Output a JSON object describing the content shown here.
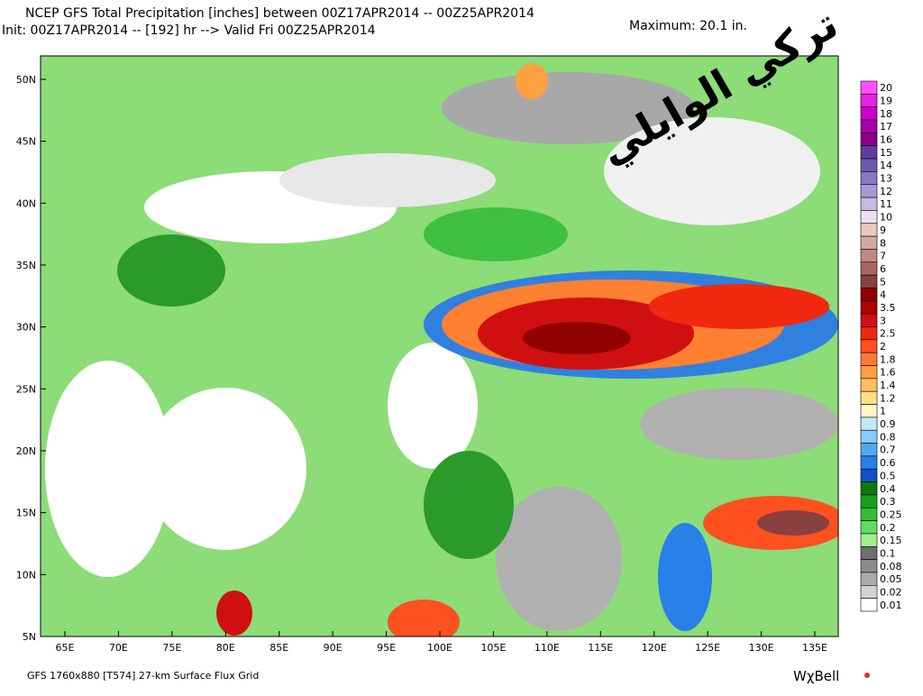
{
  "header": {
    "line1": "NCEP GFS Total Precipitation [inches] between 00Z17APR2014 -- 00Z25APR2014",
    "line2": "Init: 00Z17APR2014 -- [192] hr --> Valid Fri 00Z25APR2014",
    "maximum": "Maximum:  20.1 in."
  },
  "watermark": "تركي الوايلي",
  "map": {
    "lat_labels": [
      "50N",
      "45N",
      "40N",
      "35N",
      "30N",
      "25N",
      "20N",
      "15N",
      "10N",
      "5N"
    ],
    "lon_labels": [
      "65E",
      "70E",
      "75E",
      "80E",
      "85E",
      "90E",
      "95E",
      "100E",
      "105E",
      "110E",
      "115E",
      "120E",
      "125E",
      "130E",
      "135E"
    ]
  },
  "colorbar": {
    "levels": [
      {
        "label": "20",
        "color": "#ff50ff"
      },
      {
        "label": "19",
        "color": "#e820e8"
      },
      {
        "label": "18",
        "color": "#cc00cc"
      },
      {
        "label": "17",
        "color": "#a800a8"
      },
      {
        "label": "16",
        "color": "#880088"
      },
      {
        "label": "15",
        "color": "#603c9c"
      },
      {
        "label": "14",
        "color": "#7058b0"
      },
      {
        "label": "13",
        "color": "#8a78c4"
      },
      {
        "label": "12",
        "color": "#a898d4"
      },
      {
        "label": "11",
        "color": "#c8b8e4"
      },
      {
        "label": "10",
        "color": "#ece0f0"
      },
      {
        "label": "9",
        "color": "#e8c8c0"
      },
      {
        "label": "8",
        "color": "#d4a8a0"
      },
      {
        "label": "7",
        "color": "#c08880"
      },
      {
        "label": "6",
        "color": "#a86860"
      },
      {
        "label": "5",
        "color": "#884040"
      },
      {
        "label": "4",
        "color": "#900000"
      },
      {
        "label": "3.5",
        "color": "#b00000"
      },
      {
        "label": "3",
        "color": "#d01010"
      },
      {
        "label": "2.5",
        "color": "#f02810"
      },
      {
        "label": "2",
        "color": "#ff5020"
      },
      {
        "label": "1.8",
        "color": "#ff7830"
      },
      {
        "label": "1.6",
        "color": "#ffa040"
      },
      {
        "label": "1.4",
        "color": "#ffc060"
      },
      {
        "label": "1.2",
        "color": "#ffe088"
      },
      {
        "label": "1",
        "color": "#fff8c8"
      },
      {
        "label": "0.9",
        "color": "#c0e8ff"
      },
      {
        "label": "0.8",
        "color": "#88ccf8"
      },
      {
        "label": "0.7",
        "color": "#50a8f0"
      },
      {
        "label": "0.6",
        "color": "#2880e8"
      },
      {
        "label": "0.5",
        "color": "#1050c8"
      },
      {
        "label": "0.4",
        "color": "#0a7a0a"
      },
      {
        "label": "0.3",
        "color": "#18a018"
      },
      {
        "label": "0.25",
        "color": "#30c030"
      },
      {
        "label": "0.2",
        "color": "#60dc60"
      },
      {
        "label": "0.15",
        "color": "#a0f090"
      },
      {
        "label": "0.1",
        "color": "#6e6e6e"
      },
      {
        "label": "0.08",
        "color": "#8c8c8c"
      },
      {
        "label": "0.05",
        "color": "#aaaaaa"
      },
      {
        "label": "0.02",
        "color": "#d2d2d2"
      },
      {
        "label": "0.01",
        "color": "#ffffff"
      }
    ]
  },
  "footer": {
    "left": "GFS 1760x880 [T574] 27-km Surface Flux Grid",
    "brand": "WχBell"
  }
}
